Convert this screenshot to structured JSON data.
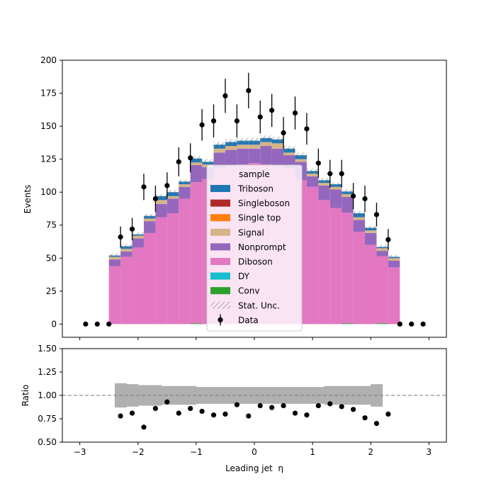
{
  "chart_data": [
    {
      "type": "bar",
      "stacked": true,
      "ylabel": "Events",
      "ylim": [
        -10,
        200
      ],
      "yticks": [
        0,
        25,
        50,
        75,
        100,
        125,
        150,
        175,
        200
      ],
      "xlim": [
        -3.3,
        3.3
      ],
      "bin_edges": [
        -2.5,
        -2.3,
        -2.1,
        -1.9,
        -1.7,
        -1.5,
        -1.3,
        -1.1,
        -0.9,
        -0.7,
        -0.5,
        -0.3,
        -0.1,
        0.1,
        0.3,
        0.5,
        0.7,
        0.9,
        1.1,
        1.3,
        1.5,
        1.7,
        1.9,
        2.1,
        2.3,
        2.5
      ],
      "series": [
        {
          "name": "Conv",
          "color": "#2ca02c",
          "values": [
            0,
            0,
            0,
            0,
            0,
            0,
            0,
            0.5,
            0,
            0,
            0,
            0,
            0,
            0,
            0,
            0,
            0,
            0,
            0,
            0,
            0.5,
            0,
            0,
            0.5,
            0
          ]
        },
        {
          "name": "DY",
          "color": "#17becf",
          "values": [
            0,
            0,
            0,
            0,
            0,
            0,
            0,
            0,
            0,
            0,
            0,
            0,
            0,
            0,
            0,
            0,
            0,
            0,
            0,
            0,
            0,
            0,
            0,
            0,
            0
          ]
        },
        {
          "name": "Diboson",
          "color": "#e377c2",
          "values": [
            44,
            51,
            58,
            69,
            81,
            84,
            95,
            107,
            110,
            118,
            120,
            121,
            122,
            121,
            120,
            118,
            109,
            104,
            94,
            88,
            84,
            70,
            60,
            51,
            43
          ]
        },
        {
          "name": "Nonprompt",
          "color": "#9467bd",
          "values": [
            5,
            4,
            7,
            9,
            10,
            11,
            9,
            13,
            9,
            12,
            12,
            12,
            11,
            14,
            13,
            10,
            14,
            8,
            11,
            14,
            12,
            9,
            9,
            4,
            5
          ]
        },
        {
          "name": "Signal",
          "color": "#d6b48a",
          "values": [
            2,
            2,
            2,
            2,
            3,
            2,
            2,
            2,
            2,
            3,
            3,
            3,
            3,
            3,
            4,
            2,
            2,
            2,
            2,
            2,
            2,
            2,
            2,
            2,
            2
          ]
        },
        {
          "name": "Single top",
          "color": "#ff7f0e",
          "values": [
            0,
            0,
            0,
            0,
            0,
            0,
            0,
            0,
            0,
            0,
            0,
            0,
            0,
            0,
            0,
            0,
            0,
            0,
            0,
            0,
            0,
            0,
            0,
            0,
            0
          ]
        },
        {
          "name": "Singleboson",
          "color": "#b2282a",
          "values": [
            0,
            0,
            0,
            0,
            0,
            0,
            0,
            0,
            0,
            0,
            0,
            0,
            0,
            0,
            0,
            0,
            0,
            0,
            0,
            0,
            0,
            0,
            0,
            0,
            0
          ]
        },
        {
          "name": "Triboson",
          "color": "#1f77b4",
          "values": [
            1,
            2,
            1,
            2,
            3,
            3,
            2,
            3,
            2,
            3,
            3,
            3,
            3,
            3,
            3,
            3,
            3,
            2,
            2,
            2,
            2,
            3,
            2,
            1,
            1
          ]
        }
      ],
      "uncertainty": {
        "name": "Stat. Unc.",
        "half_width": [
          1.5,
          1.5,
          1.5,
          1.5,
          1.5,
          1.5,
          1.5,
          2,
          2,
          2,
          2,
          2,
          2,
          2,
          2,
          2,
          2,
          2,
          1.5,
          1.5,
          1.5,
          1.5,
          1.5,
          1.5,
          1.5
        ]
      },
      "data_points": {
        "name": "Data",
        "x": [
          -2.9,
          -2.7,
          -2.5,
          -2.3,
          -2.1,
          -1.9,
          -1.7,
          -1.5,
          -1.3,
          -1.1,
          -0.9,
          -0.7,
          -0.5,
          -0.3,
          -0.1,
          0.1,
          0.3,
          0.5,
          0.7,
          0.9,
          1.1,
          1.3,
          1.5,
          1.7,
          1.9,
          2.1,
          2.3,
          2.5,
          2.7,
          2.9
        ],
        "y": [
          0,
          0,
          0,
          66,
          72,
          104,
          95,
          105,
          123,
          126,
          151,
          154,
          173,
          154,
          177,
          157,
          162,
          145,
          160,
          148,
          122,
          114,
          114,
          97,
          95,
          83,
          64,
          0,
          0,
          0
        ],
        "err": [
          0,
          0,
          0,
          8,
          8.5,
          10,
          10,
          10,
          11,
          11,
          12,
          12.5,
          13,
          12.5,
          13.5,
          12.5,
          12.5,
          12,
          12.5,
          12,
          11,
          10.5,
          10.5,
          10,
          10,
          9,
          8,
          0,
          0,
          0
        ]
      },
      "legend": {
        "title": "sample",
        "placement": "lower-center",
        "entries": [
          "Triboson",
          "Singleboson",
          "Single top",
          "Signal",
          "Nonprompt",
          "Diboson",
          "DY",
          "Conv",
          "Stat. Unc.",
          "Data"
        ]
      }
    },
    {
      "type": "scatter",
      "ylabel": "Ratio",
      "xlabel": "Leading jet  η",
      "ylim": [
        0.5,
        1.5
      ],
      "yticks": [
        "0.50",
        "0.75",
        "1.00",
        "1.25",
        "1.50"
      ],
      "xlim": [
        -3.3,
        3.3
      ],
      "xticks": [
        "−3",
        "−2",
        "−1",
        "0",
        "1",
        "2",
        "3"
      ],
      "xtick_values": [
        -3,
        -2,
        -1,
        0,
        1,
        2,
        3
      ],
      "reference_line": 1.0,
      "band_edges": [
        -2.4,
        2.2
      ],
      "band_half_width": [
        0.13,
        0.12,
        0.11,
        0.11,
        0.1,
        0.1,
        0.1,
        0.09,
        0.09,
        0.09,
        0.09,
        0.09,
        0.09,
        0.09,
        0.09,
        0.09,
        0.09,
        0.09,
        0.1,
        0.1,
        0.1,
        0.1,
        0.12
      ],
      "x": [
        -2.3,
        -2.1,
        -1.9,
        -1.7,
        -1.5,
        -1.3,
        -1.1,
        -0.9,
        -0.7,
        -0.5,
        -0.3,
        -0.1,
        0.1,
        0.3,
        0.5,
        0.7,
        0.9,
        1.1,
        1.3,
        1.5,
        1.7,
        1.9,
        2.1,
        2.3
      ],
      "y": [
        0.78,
        0.81,
        0.66,
        0.86,
        0.93,
        0.81,
        0.86,
        0.83,
        0.79,
        0.8,
        0.9,
        0.78,
        0.89,
        0.87,
        0.89,
        0.81,
        0.79,
        0.89,
        0.91,
        0.88,
        0.85,
        0.76,
        0.7,
        0.8
      ]
    }
  ]
}
